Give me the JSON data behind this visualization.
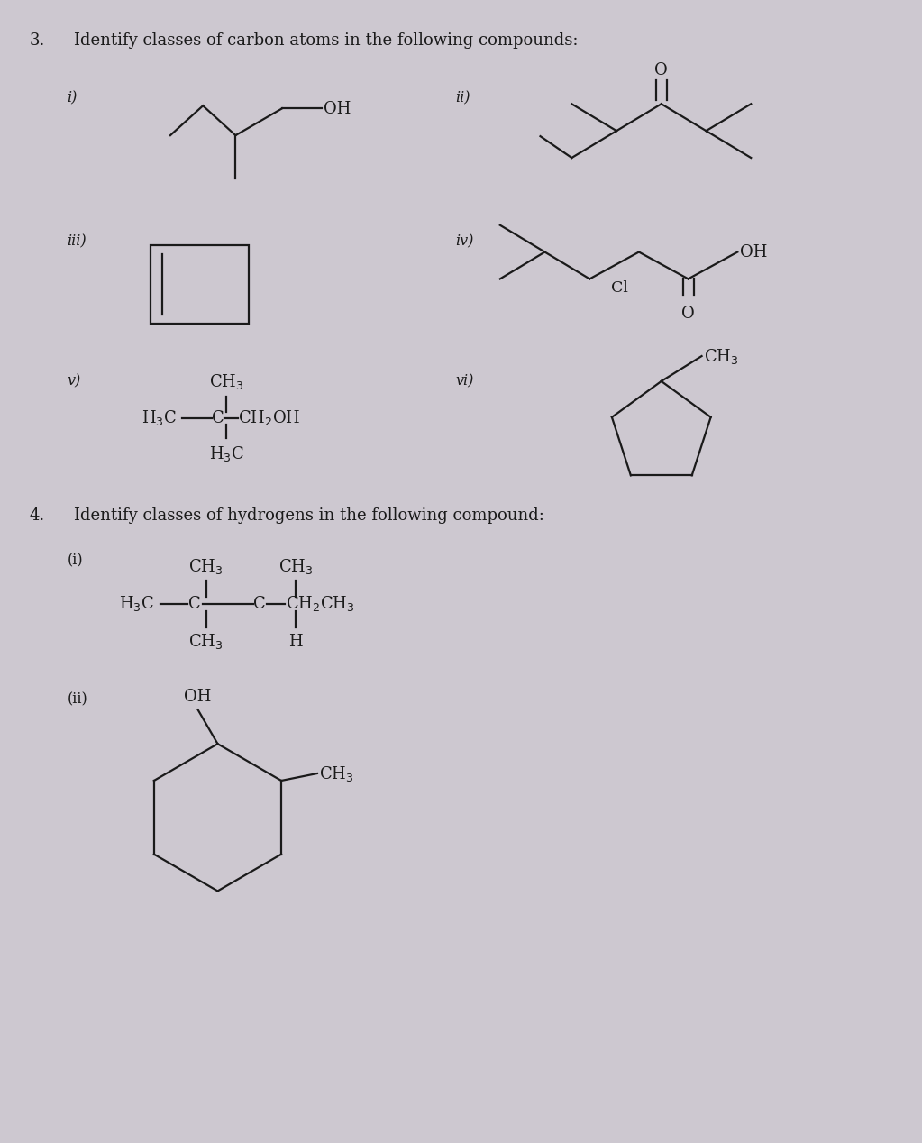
{
  "bg_color": "#cdc8d0",
  "text_color": "#1a1a1a",
  "title3": "Identify classes of carbon atoms in the following compounds:",
  "title4": "Identify classes of hydrogens in the following compound:",
  "label3": "3.",
  "label4": "4.",
  "fig_width": 10.23,
  "fig_height": 12.68,
  "font_size_title": 13.0,
  "font_size_label": 13.0,
  "font_size_sub": 11.5,
  "font_size_chem": 13.0,
  "lw": 1.6
}
